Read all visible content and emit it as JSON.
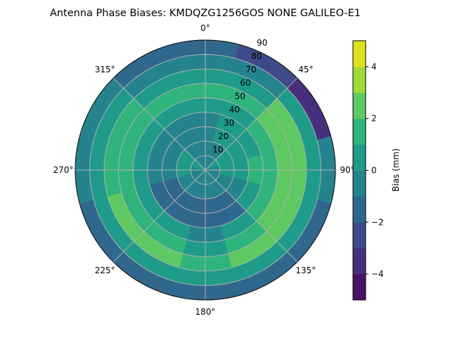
{
  "chart_data": {
    "type": "heatmap",
    "subtype": "polar-contour",
    "title": "Antenna Phase Biases: KMDQZG1256GOS   NONE GALILEO-E1",
    "colorbar_label": "Bias (mm)",
    "colormap": "viridis",
    "levels": [
      -5,
      -4,
      -3,
      -2,
      -1,
      0,
      1,
      2,
      3,
      4,
      5
    ],
    "level_colors": [
      "#471164",
      "#472f7d",
      "#3e4a89",
      "#30678d",
      "#25838e",
      "#1e9c89",
      "#2fb47c",
      "#5ec962",
      "#a0da39",
      "#dde318"
    ],
    "colorbar_ticks": [
      "−4",
      "−2",
      "0",
      "2",
      "4"
    ],
    "colorbar_tick_values": [
      -4,
      -2,
      0,
      2,
      4
    ],
    "theta_zero": "top",
    "theta_direction": "clockwise",
    "angle_ticks": [
      "0°",
      "45°",
      "90°",
      "135°",
      "180°",
      "225°",
      "270°",
      "315°"
    ],
    "angle_tick_values": [
      0,
      45,
      90,
      135,
      180,
      225,
      270,
      315
    ],
    "radial_ticks": [
      "10",
      "20",
      "30",
      "40",
      "50",
      "60",
      "70",
      "80",
      "90"
    ],
    "radial_tick_values": [
      10,
      20,
      30,
      40,
      50,
      60,
      70,
      80,
      90
    ],
    "rlim": [
      0,
      90
    ],
    "grid": true,
    "azimuth_deg": [
      0,
      30,
      60,
      90,
      120,
      150,
      180,
      210,
      240,
      270,
      300,
      330
    ],
    "radial_bins": [
      [
        0,
        10
      ],
      [
        10,
        20
      ],
      [
        20,
        30
      ],
      [
        30,
        40
      ],
      [
        40,
        50
      ],
      [
        50,
        60
      ],
      [
        60,
        70
      ],
      [
        70,
        80
      ],
      [
        80,
        90
      ]
    ],
    "bias_mm": [
      [
        -0.5,
        -0.5,
        -0.5,
        -0.5,
        0.5,
        1.5,
        0.5,
        -0.5,
        -1.5
      ],
      [
        -0.5,
        -0.5,
        0.5,
        0.5,
        0.5,
        1.5,
        0.5,
        -0.5,
        -2.5
      ],
      [
        0.5,
        0.5,
        0.5,
        0.5,
        1.5,
        2.5,
        2.5,
        0.5,
        -3.5
      ],
      [
        -0.5,
        0.5,
        0.5,
        1.5,
        1.5,
        2.5,
        2.5,
        0.5,
        -0.5
      ],
      [
        -0.5,
        -0.5,
        -0.5,
        0.5,
        1.5,
        2.5,
        2.5,
        0.5,
        -1.5
      ],
      [
        -0.5,
        -0.5,
        -1.5,
        -1.5,
        0.5,
        1.5,
        2.5,
        0.5,
        -1.5
      ],
      [
        -0.5,
        -0.5,
        -1.5,
        -1.5,
        -0.5,
        0.5,
        1.5,
        0.5,
        -1.5
      ],
      [
        -0.5,
        -0.5,
        -1.5,
        -1.5,
        0.5,
        1.5,
        2.5,
        0.5,
        -1.5
      ],
      [
        -0.5,
        -0.5,
        -1.5,
        -1.5,
        0.5,
        1.5,
        2.5,
        0.5,
        -1.5
      ],
      [
        -0.5,
        0.5,
        -0.5,
        -0.5,
        0.5,
        1.5,
        1.5,
        0.5,
        -0.5
      ],
      [
        0.5,
        0.5,
        -0.5,
        -0.5,
        0.5,
        1.5,
        1.5,
        0.5,
        -0.5
      ],
      [
        -0.5,
        -0.5,
        -0.5,
        -0.5,
        0.5,
        1.5,
        0.5,
        -0.5,
        -1.5
      ]
    ]
  }
}
